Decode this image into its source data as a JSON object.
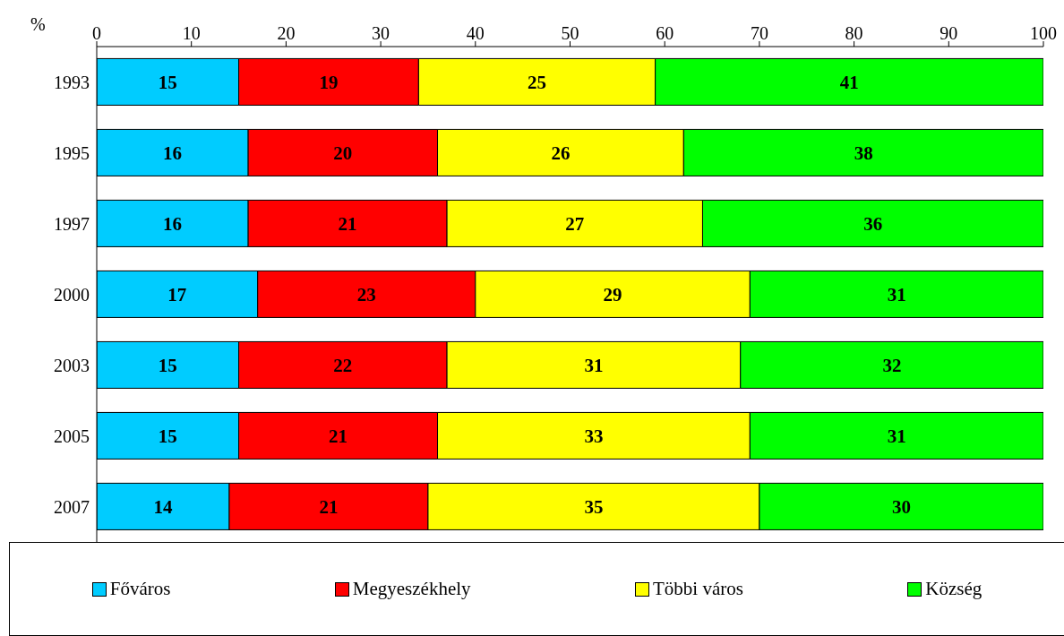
{
  "chart_data": {
    "type": "bar",
    "orientation": "horizontal",
    "stacked": true,
    "xlabel": "%",
    "categories": [
      "1993",
      "1995",
      "1997",
      "2000",
      "2003",
      "2005",
      "2007"
    ],
    "series": [
      {
        "name": "Főváros",
        "color": "#00ccff",
        "values": [
          15,
          16,
          16,
          17,
          15,
          15,
          14
        ]
      },
      {
        "name": "Megyeszékhely",
        "color": "#ff0000",
        "values": [
          19,
          20,
          21,
          23,
          22,
          21,
          21
        ]
      },
      {
        "name": "Többi város",
        "color": "#ffff00",
        "values": [
          25,
          26,
          27,
          29,
          31,
          33,
          35
        ]
      },
      {
        "name": "Község",
        "color": "#00ff00",
        "values": [
          41,
          38,
          36,
          31,
          32,
          31,
          30
        ]
      }
    ],
    "xlim": [
      0,
      100
    ],
    "xticks": [
      0,
      10,
      20,
      30,
      40,
      50,
      60,
      70,
      80,
      90,
      100
    ],
    "data_labels": true,
    "legend": "bottom",
    "grid": false
  }
}
